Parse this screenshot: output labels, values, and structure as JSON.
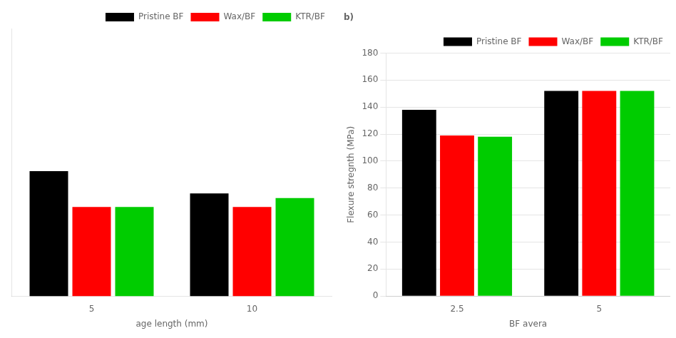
{
  "chart_data": [
    {
      "type": "bar",
      "xlabel": "age length (mm)",
      "categories": [
        5,
        10
      ],
      "series": [
        {
          "name": "Pristine BF",
          "color": "#000000",
          "values": [
            148,
            143
          ]
        },
        {
          "name": "Wax/BF",
          "color": "#ff0000",
          "values": [
            140,
            140
          ]
        },
        {
          "name": "KTR/BF",
          "color": "#00cc00",
          "values": [
            140,
            142
          ]
        }
      ],
      "ylim": [
        120,
        180
      ],
      "grid": false,
      "tick_labels": "x",
      "legend": "upper right"
    },
    {
      "type": "bar",
      "title": "b)",
      "xlabel": "BF avera",
      "ylabel": "Flexure stregnth (MPa)",
      "categories": [
        2.5,
        5
      ],
      "series": [
        {
          "name": "Pristine BF",
          "color": "#000000",
          "values": [
            138,
            152
          ]
        },
        {
          "name": "Wax/BF",
          "color": "#ff0000",
          "values": [
            119,
            152
          ]
        },
        {
          "name": "KTR/BF",
          "color": "#00cc00",
          "values": [
            118,
            152
          ]
        }
      ],
      "ylim": [
        0,
        180
      ],
      "yticks": [
        0,
        20,
        40,
        60,
        80,
        100,
        120,
        140,
        160,
        180
      ],
      "grid": true,
      "legend": "upper right"
    }
  ]
}
